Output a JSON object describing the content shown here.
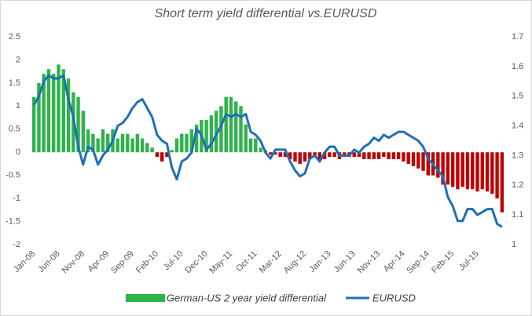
{
  "chart_data": {
    "type": "bar-line",
    "title": "Short term yield differential vs.EURUSD",
    "categories": [
      "Jan-08",
      null,
      null,
      null,
      null,
      "Jun-08",
      null,
      null,
      null,
      null,
      "Nov-08",
      null,
      null,
      null,
      null,
      "Apr-09",
      null,
      null,
      null,
      null,
      "Sep-09",
      null,
      null,
      null,
      null,
      "Feb-10",
      null,
      null,
      null,
      null,
      "Jul-10",
      null,
      null,
      null,
      null,
      "Dec-10",
      null,
      null,
      null,
      null,
      "May-11",
      null,
      null,
      null,
      null,
      "Oct-11",
      null,
      null,
      null,
      null,
      "Mar-12",
      null,
      null,
      null,
      null,
      "Aug-12",
      null,
      null,
      null,
      null,
      "Jan-13",
      null,
      null,
      null,
      null,
      "Jun-13",
      null,
      null,
      null,
      null,
      "Nov-13",
      null,
      null,
      null,
      null,
      "Apr-14",
      null,
      null,
      null,
      null,
      "Sep-14",
      null,
      null,
      null,
      null,
      "Feb-15",
      null,
      null,
      null,
      null,
      "Jul-15",
      null,
      null,
      null,
      null,
      null
    ],
    "series": [
      {
        "name": "German-US 2 year yield differential",
        "type": "bar",
        "color": "#2db34a",
        "negative_color": "#c00000",
        "values": [
          1.2,
          1.5,
          1.7,
          1.8,
          1.7,
          1.9,
          1.8,
          1.6,
          1.3,
          1.2,
          0.9,
          0.5,
          0.4,
          0.3,
          0.5,
          0.4,
          0.5,
          0.3,
          0.4,
          0.4,
          0.3,
          0.4,
          0.3,
          0.2,
          0.1,
          -0.1,
          -0.2,
          -0.1,
          0.05,
          0.3,
          0.4,
          0.4,
          0.5,
          0.6,
          0.7,
          0.7,
          0.8,
          0.9,
          1.0,
          1.2,
          1.2,
          1.1,
          1.0,
          0.6,
          0.3,
          0.3,
          0.1,
          0.05,
          -0.05,
          -0.05,
          -0.1,
          -0.1,
          -0.15,
          -0.2,
          -0.25,
          -0.2,
          -0.15,
          -0.1,
          -0.15,
          -0.15,
          -0.1,
          -0.1,
          -0.15,
          -0.1,
          -0.1,
          -0.1,
          -0.1,
          -0.15,
          -0.15,
          -0.15,
          -0.15,
          -0.1,
          -0.15,
          -0.15,
          -0.15,
          -0.2,
          -0.25,
          -0.3,
          -0.35,
          -0.4,
          -0.5,
          -0.5,
          -0.55,
          -0.7,
          -0.7,
          -0.75,
          -0.8,
          -0.75,
          -0.8,
          -0.8,
          -0.85,
          -0.8,
          -0.85,
          -0.9,
          -1.0,
          -1.3
        ]
      },
      {
        "name": "EURUSD",
        "type": "line",
        "axis": "y2",
        "color": "#1f6fb4",
        "values": [
          1.47,
          1.5,
          1.55,
          1.57,
          1.56,
          1.56,
          1.57,
          1.49,
          1.43,
          1.33,
          1.27,
          1.33,
          1.32,
          1.27,
          1.3,
          1.32,
          1.35,
          1.4,
          1.41,
          1.43,
          1.46,
          1.48,
          1.49,
          1.46,
          1.43,
          1.37,
          1.35,
          1.34,
          1.26,
          1.22,
          1.28,
          1.29,
          1.31,
          1.39,
          1.37,
          1.32,
          1.34,
          1.37,
          1.4,
          1.44,
          1.43,
          1.44,
          1.43,
          1.44,
          1.38,
          1.37,
          1.35,
          1.31,
          1.29,
          1.32,
          1.32,
          1.32,
          1.28,
          1.25,
          1.23,
          1.24,
          1.29,
          1.3,
          1.28,
          1.31,
          1.33,
          1.33,
          1.3,
          1.3,
          1.3,
          1.32,
          1.31,
          1.33,
          1.34,
          1.36,
          1.35,
          1.37,
          1.36,
          1.37,
          1.38,
          1.38,
          1.37,
          1.36,
          1.35,
          1.33,
          1.29,
          1.27,
          1.25,
          1.23,
          1.16,
          1.13,
          1.08,
          1.08,
          1.12,
          1.12,
          1.1,
          1.11,
          1.12,
          1.12,
          1.07,
          1.06
        ]
      }
    ],
    "ylim": [
      -2,
      2.5
    ],
    "yticks": [
      -2,
      -1.5,
      -1,
      -0.5,
      0,
      0.5,
      1,
      1.5,
      2,
      2.5
    ],
    "y2lim": [
      1,
      1.7
    ],
    "y2ticks": [
      1,
      1.1,
      1.2,
      1.3,
      1.4,
      1.5,
      1.6,
      1.7
    ],
    "grid": false,
    "legend": "bottom"
  }
}
